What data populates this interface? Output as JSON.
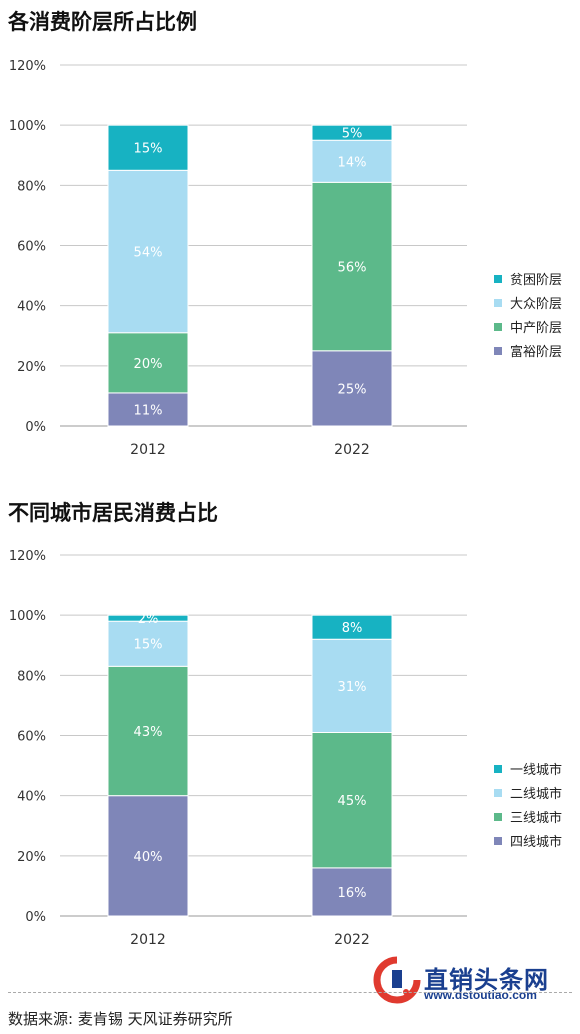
{
  "chart_data": [
    {
      "type": "bar",
      "stacked": true,
      "title": "各消费阶层所占比例",
      "categories": [
        "2012",
        "2022"
      ],
      "series": [
        {
          "name": "富裕阶层",
          "color": "#7f86b8",
          "values": [
            11,
            25
          ],
          "labels": [
            "11%",
            "25%"
          ]
        },
        {
          "name": "中产阶层",
          "color": "#5cb98a",
          "values": [
            20,
            56
          ],
          "labels": [
            "20%",
            "56%"
          ]
        },
        {
          "name": "大众阶层",
          "color": "#a8dcf2",
          "values": [
            54,
            14
          ],
          "labels": [
            "54%",
            "14%"
          ]
        },
        {
          "name": "贫困阶层",
          "color": "#17b2c2",
          "values": [
            15,
            5
          ],
          "labels": [
            "15%",
            "5%"
          ]
        }
      ],
      "ylim": [
        0,
        120
      ],
      "yticks": [
        "0%",
        "20%",
        "40%",
        "60%",
        "80%",
        "100%",
        "120%"
      ],
      "grid": true,
      "legend": "right"
    },
    {
      "type": "bar",
      "stacked": true,
      "title": "不同城市居民消费占比",
      "categories": [
        "2012",
        "2022"
      ],
      "series": [
        {
          "name": "四线城市",
          "color": "#7f86b8",
          "values": [
            40,
            16
          ],
          "labels": [
            "40%",
            "16%"
          ]
        },
        {
          "name": "三线城市",
          "color": "#5cb98a",
          "values": [
            43,
            45
          ],
          "labels": [
            "43%",
            "45%"
          ]
        },
        {
          "name": "二线城市",
          "color": "#a8dcf2",
          "values": [
            15,
            31
          ],
          "labels": [
            "15%",
            "31%"
          ]
        },
        {
          "name": "一线城市",
          "color": "#17b2c2",
          "values": [
            2,
            8
          ],
          "labels": [
            "2%",
            "8%"
          ]
        }
      ],
      "ylim": [
        0,
        120
      ],
      "yticks": [
        "0%",
        "20%",
        "40%",
        "60%",
        "80%",
        "100%",
        "120%"
      ],
      "grid": true,
      "legend": "right"
    }
  ],
  "footer": {
    "source": "数据来源: 麦肯锡 天风证券研究所"
  },
  "logo": {
    "name": "直销头条网",
    "url": "www.dstoutiao.com"
  }
}
